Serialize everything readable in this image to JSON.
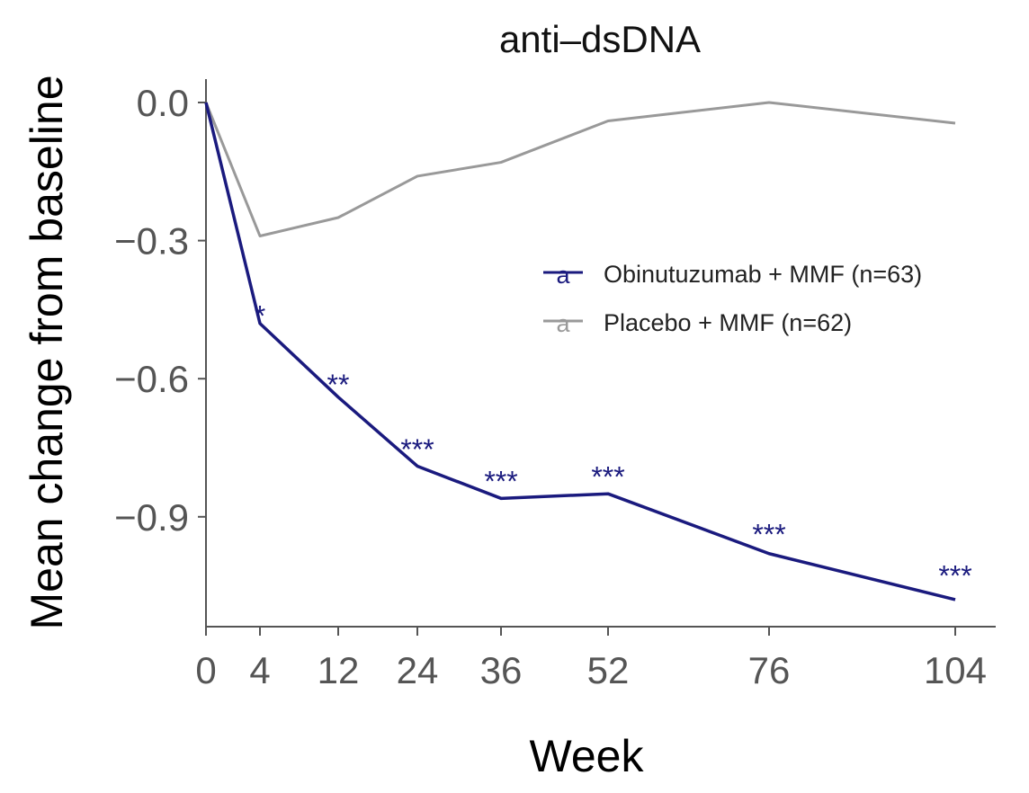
{
  "chart_data": {
    "type": "line",
    "title": "anti–dsDNA",
    "xlabel": "Week",
    "ylabel": "Mean change from baseline",
    "x_ticks": [
      "0",
      "4",
      "12",
      "24",
      "36",
      "52",
      "76",
      "104"
    ],
    "y_ticks": [
      "0.0",
      "−0.3",
      "−0.6",
      "−0.9"
    ],
    "y_tick_values": [
      0.0,
      -0.3,
      -0.6,
      -0.9
    ],
    "ylim": [
      -1.13,
      0.05
    ],
    "grid": false,
    "legend_position": "right",
    "series": [
      {
        "name": "Obinutuzumab + MMF (n=63)",
        "color": "#1a1a7e",
        "legend_key": "a",
        "points": [
          {
            "x": "0",
            "y": 0.0
          },
          {
            "x": "4",
            "y": -0.48
          },
          {
            "x": "12",
            "y": -0.64
          },
          {
            "x": "24",
            "y": -0.79
          },
          {
            "x": "36",
            "y": -0.86
          },
          {
            "x": "52",
            "y": -0.85
          },
          {
            "x": "76",
            "y": -0.98
          },
          {
            "x": "104",
            "y": -1.08
          }
        ]
      },
      {
        "name": "Placebo + MMF (n=62)",
        "color": "#999999",
        "legend_key": "a",
        "points": [
          {
            "x": "0",
            "y": 0.0
          },
          {
            "x": "4",
            "y": -0.29
          },
          {
            "x": "12",
            "y": -0.25
          },
          {
            "x": "24",
            "y": -0.16
          },
          {
            "x": "36",
            "y": -0.13
          },
          {
            "x": "52",
            "y": -0.04
          },
          {
            "x": "76",
            "y": 0.0
          },
          {
            "x": "104",
            "y": -0.045
          }
        ]
      }
    ],
    "annotations": [
      {
        "x": "4",
        "text": "*",
        "y": -0.45
      },
      {
        "x": "12",
        "text": "**",
        "y": -0.6
      },
      {
        "x": "24",
        "text": "***",
        "y": -0.74
      },
      {
        "x": "36",
        "text": "***",
        "y": -0.81
      },
      {
        "x": "52",
        "text": "***",
        "y": -0.8
      },
      {
        "x": "76",
        "text": "***",
        "y": -0.925
      },
      {
        "x": "104",
        "text": "***",
        "y": -1.015
      }
    ]
  }
}
